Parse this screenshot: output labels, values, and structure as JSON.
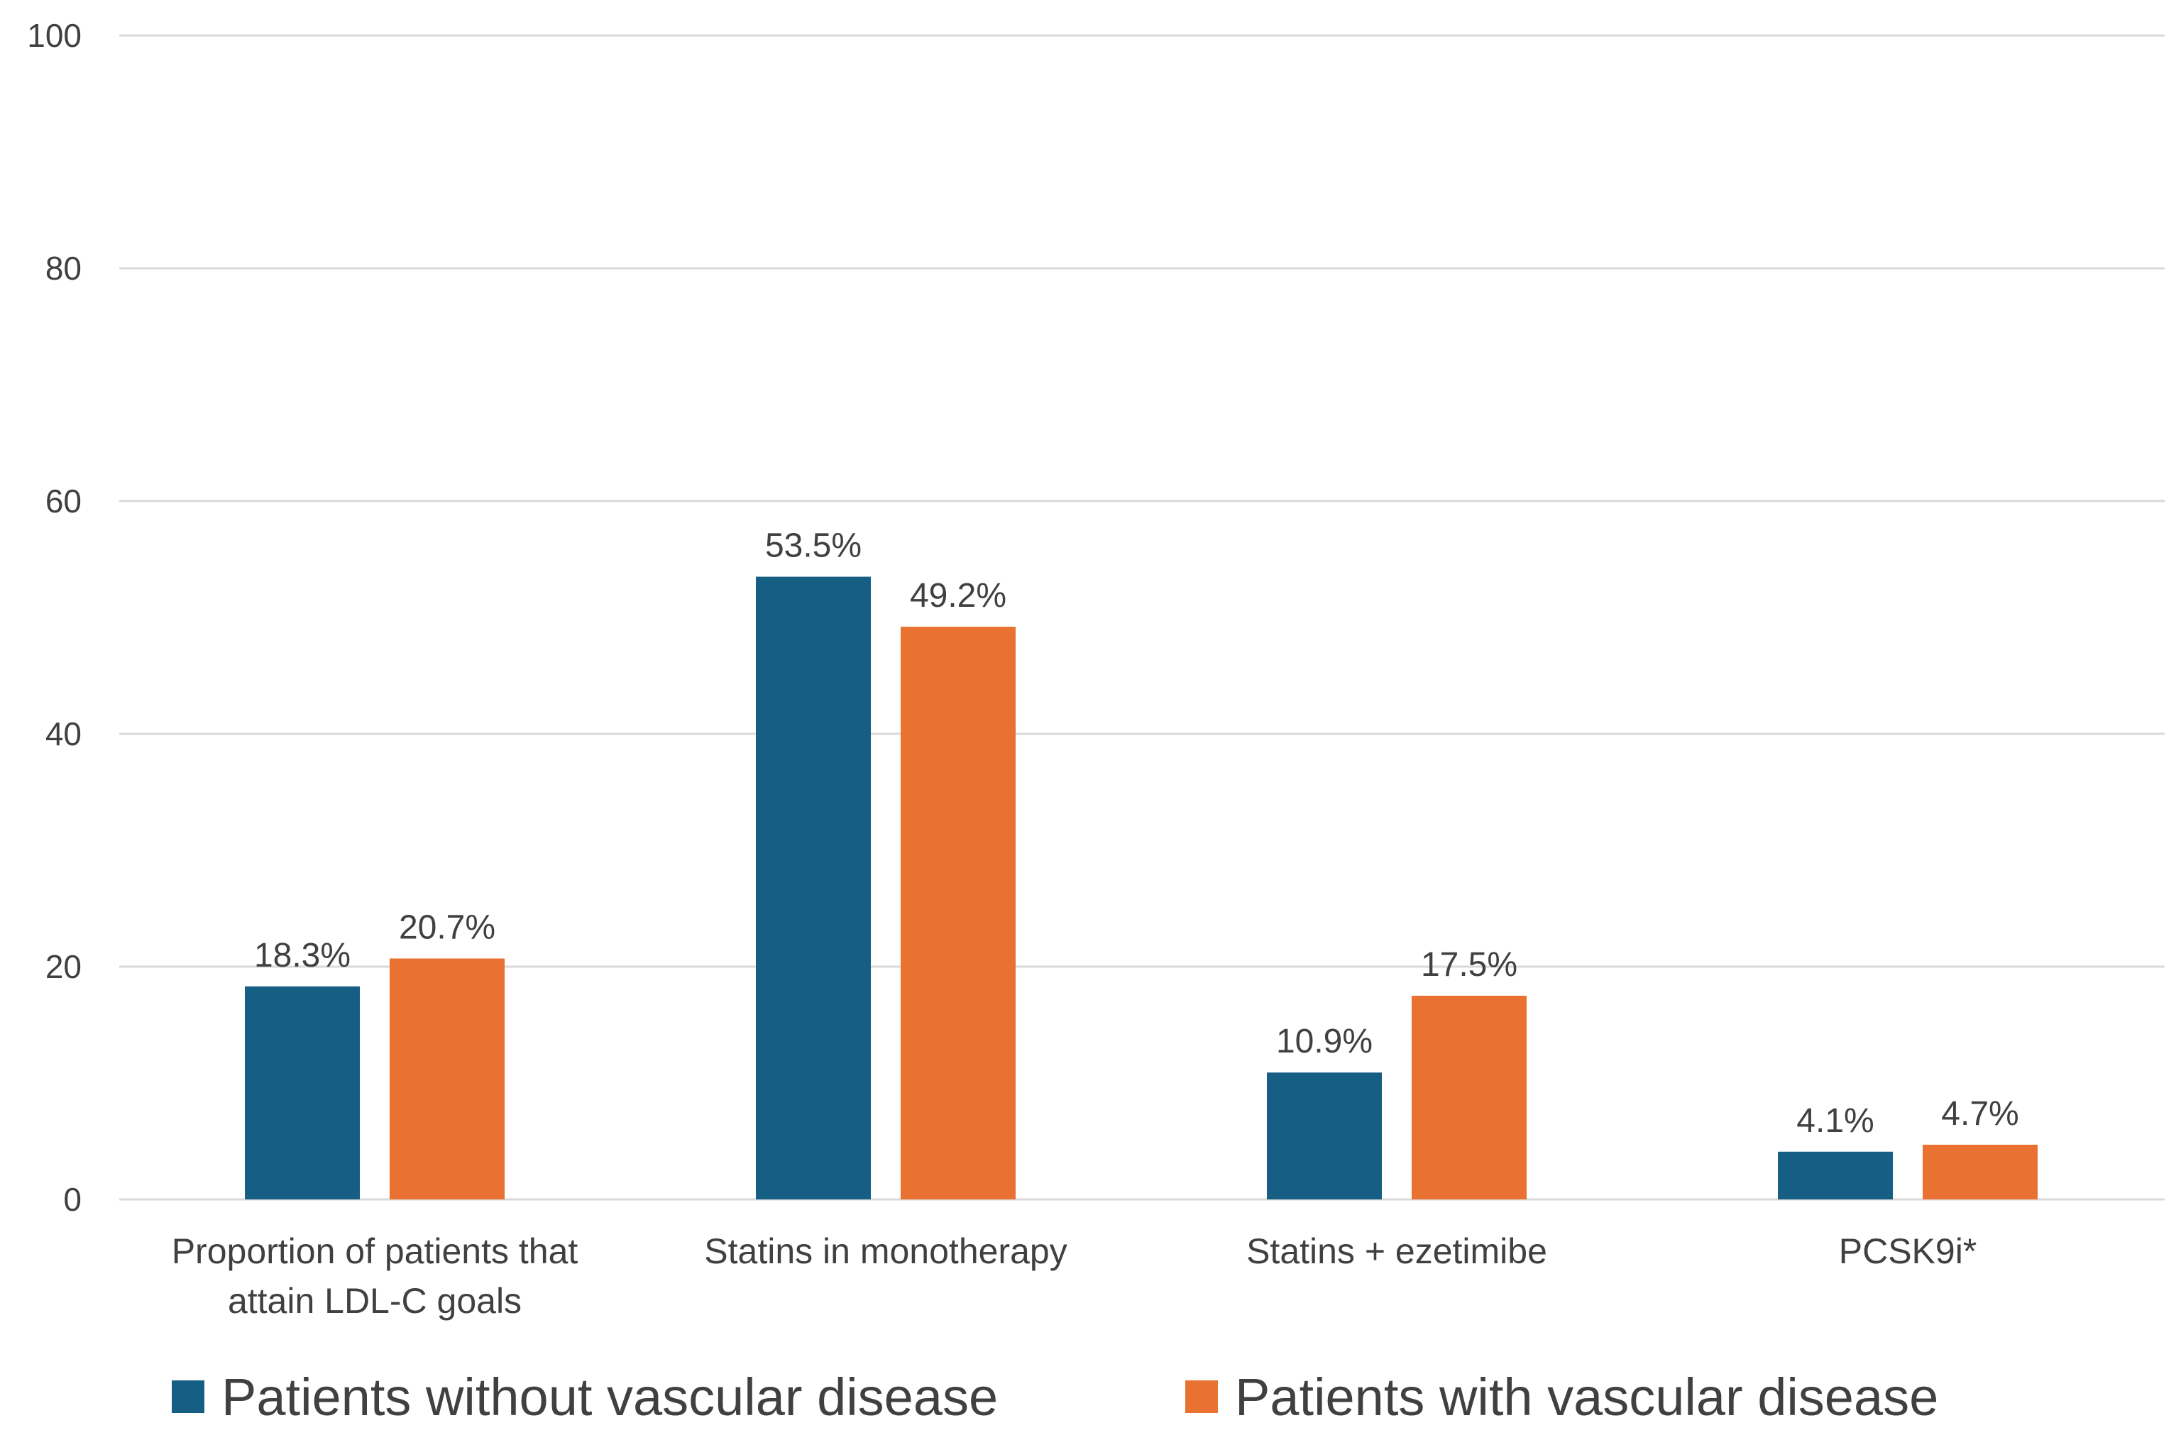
{
  "chart_data": {
    "type": "bar",
    "title": "",
    "xlabel": "",
    "ylabel": "",
    "ylim": [
      0,
      100
    ],
    "yticks": [
      0,
      20,
      40,
      60,
      80,
      100
    ],
    "ytick_labels": [
      "0",
      "20",
      "40",
      "60",
      "80",
      "100"
    ],
    "grid": true,
    "legend_position": "bottom",
    "categories": [
      [
        "Proportion of patients that",
        "attain LDL-C goals"
      ],
      [
        "Statins in monotherapy"
      ],
      [
        "Statins + ezetimibe"
      ],
      [
        "PCSK9i*"
      ]
    ],
    "series": [
      {
        "name": "Patients without vascular disease",
        "color": "#165e83",
        "values": [
          18.3,
          53.5,
          10.9,
          4.1
        ],
        "labels": [
          "18.3%",
          "53.5%",
          "10.9%",
          "4.1%"
        ]
      },
      {
        "name": "Patients with vascular disease",
        "color": "#e97132",
        "values": [
          20.7,
          49.2,
          17.5,
          4.7
        ],
        "labels": [
          "20.7%",
          "49.2%",
          "17.5%",
          "4.7%"
        ]
      }
    ]
  }
}
